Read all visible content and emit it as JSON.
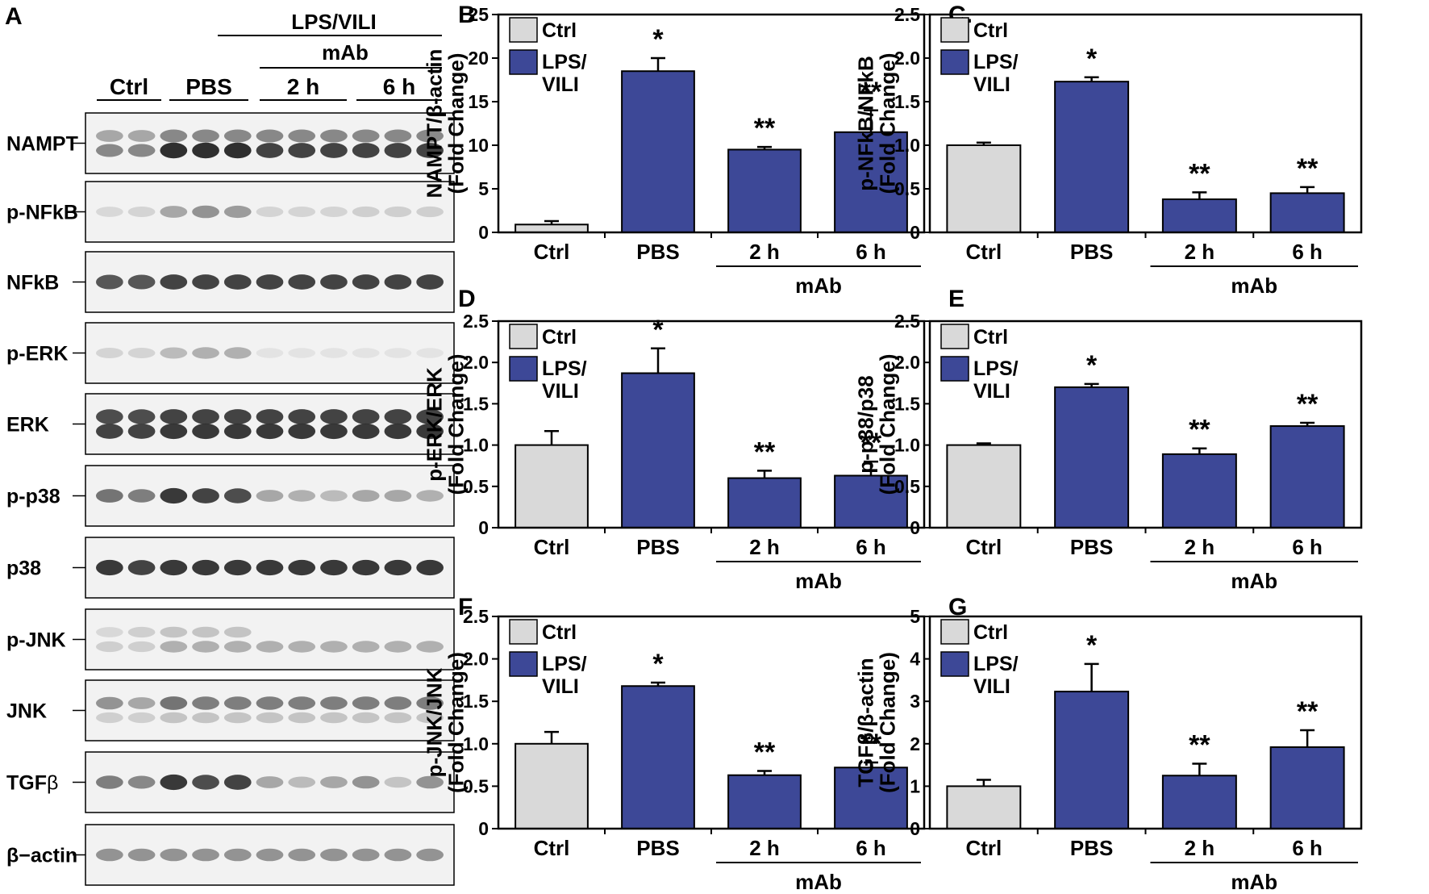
{
  "figure": {
    "panel_a": {
      "letter": "A",
      "group_header": "LPS/VILI",
      "mab_header": "mAb",
      "lane_groups": [
        "Ctrl",
        "PBS",
        "2 h",
        "6 h"
      ],
      "blots": [
        {
          "label": "NAMPT",
          "label_sub": ""
        },
        {
          "label": "p-NFkB",
          "label_sub": ""
        },
        {
          "label": "NFkB",
          "label_sub": ""
        },
        {
          "label": "p-ERK",
          "label_sub": ""
        },
        {
          "label": "ERK",
          "label_sub": ""
        },
        {
          "label": "p-p38",
          "label_sub": ""
        },
        {
          "label": "p38",
          "label_sub": ""
        },
        {
          "label": "p-JNK",
          "label_sub": ""
        },
        {
          "label": "JNK",
          "label_sub": ""
        },
        {
          "label": "TGF",
          "label_sub": "β"
        },
        {
          "label": "β−actin",
          "label_sub": ""
        }
      ],
      "band_intensity": [
        [
          [
            0.35,
            0.35,
            0.5,
            0.5,
            0.5,
            0.5,
            0.5,
            0.5,
            0.5,
            0.5,
            0.5
          ],
          [
            0.5,
            0.5,
            0.95,
            0.95,
            0.95,
            0.85,
            0.85,
            0.85,
            0.85,
            0.85,
            0.85
          ]
        ],
        [
          [
            0.1,
            0.12,
            0.35,
            0.45,
            0.4,
            0.12,
            0.12,
            0.12,
            0.15,
            0.15,
            0.15
          ]
        ],
        [
          [
            0.75,
            0.75,
            0.85,
            0.85,
            0.85,
            0.85,
            0.85,
            0.85,
            0.85,
            0.85,
            0.85
          ]
        ],
        [
          [
            0.12,
            0.12,
            0.25,
            0.3,
            0.3,
            0.05,
            0.05,
            0.05,
            0.05,
            0.05,
            0.05
          ]
        ],
        [
          [
            0.8,
            0.8,
            0.85,
            0.85,
            0.85,
            0.85,
            0.85,
            0.85,
            0.85,
            0.85,
            0.85
          ],
          [
            0.85,
            0.85,
            0.9,
            0.9,
            0.9,
            0.9,
            0.9,
            0.9,
            0.9,
            0.9,
            0.9
          ]
        ],
        [
          [
            0.6,
            0.55,
            0.9,
            0.85,
            0.8,
            0.35,
            0.3,
            0.25,
            0.35,
            0.35,
            0.3
          ]
        ],
        [
          [
            0.9,
            0.85,
            0.9,
            0.9,
            0.9,
            0.9,
            0.9,
            0.9,
            0.9,
            0.9,
            0.9
          ]
        ],
        [
          [
            0.1,
            0.15,
            0.2,
            0.2,
            0.2,
            0.0,
            0.0,
            0.0,
            0.0,
            0.0,
            0.0
          ],
          [
            0.15,
            0.15,
            0.3,
            0.3,
            0.3,
            0.3,
            0.3,
            0.3,
            0.3,
            0.3,
            0.3
          ]
        ],
        [
          [
            0.45,
            0.35,
            0.6,
            0.55,
            0.55,
            0.55,
            0.55,
            0.55,
            0.55,
            0.55,
            0.55
          ],
          [
            0.15,
            0.15,
            0.2,
            0.2,
            0.2,
            0.2,
            0.2,
            0.2,
            0.2,
            0.2,
            0.2
          ]
        ],
        [
          [
            0.55,
            0.5,
            0.9,
            0.8,
            0.85,
            0.35,
            0.25,
            0.35,
            0.45,
            0.2,
            0.45
          ]
        ],
        [
          [
            0.45,
            0.45,
            0.45,
            0.45,
            0.45,
            0.45,
            0.45,
            0.45,
            0.45,
            0.45,
            0.45
          ]
        ]
      ]
    }
  },
  "colors": {
    "ctrl_fill": "#d9d9d9",
    "lps_vili_fill": "#3d4897",
    "axis": "#000000",
    "blot_background": "#f2f2f2"
  },
  "chart_data": [
    {
      "panel": "B",
      "type": "bar",
      "ylabel": "NAMPT/β-actin (Fold Change)",
      "categories": [
        "Ctrl",
        "PBS",
        "2 h",
        "6 h"
      ],
      "group_label": "mAb",
      "ylim": [
        0,
        25
      ],
      "yticks": [
        0,
        5,
        10,
        15,
        20,
        25
      ],
      "tick_labels": [
        "0",
        "5",
        "10",
        "15",
        "20",
        "25"
      ],
      "values": [
        0.9,
        18.5,
        9.5,
        11.5
      ],
      "errors": [
        0.4,
        1.5,
        0.3,
        2.5
      ],
      "bar_series": [
        "Ctrl",
        "LPS/VILI",
        "LPS/VILI",
        "LPS/VILI"
      ],
      "significance": [
        "",
        "*",
        "**",
        "**"
      ],
      "legend": [
        "Ctrl",
        "LPS/",
        "VILI"
      ]
    },
    {
      "panel": "C.",
      "type": "bar",
      "ylabel": "p-NFkB/NFkB (Fold Change)",
      "categories": [
        "Ctrl",
        "PBS",
        "2 h",
        "6 h"
      ],
      "group_label": "mAb",
      "ylim": [
        0,
        2.5
      ],
      "yticks": [
        0,
        0.5,
        1.0,
        1.5,
        2.0,
        2.5
      ],
      "tick_labels": [
        "0",
        "0.5",
        "1.0",
        "1.5",
        "2.0",
        "2.5"
      ],
      "values": [
        1.0,
        1.73,
        0.38,
        0.45
      ],
      "errors": [
        0.03,
        0.05,
        0.08,
        0.07
      ],
      "bar_series": [
        "Ctrl",
        "LPS/VILI",
        "LPS/VILI",
        "LPS/VILI"
      ],
      "significance": [
        "",
        "*",
        "**",
        "**"
      ],
      "legend": [
        "Ctrl",
        "LPS/",
        "VILI"
      ]
    },
    {
      "panel": "D",
      "type": "bar",
      "ylabel": "p-ERK/ERK (Fold Change)",
      "categories": [
        "Ctrl",
        "PBS",
        "2 h",
        "6 h"
      ],
      "group_label": "mAb",
      "ylim": [
        0,
        2.5
      ],
      "yticks": [
        0,
        0.5,
        1.0,
        1.5,
        2.0,
        2.5
      ],
      "tick_labels": [
        "0",
        "0.5",
        "1.0",
        "1.5",
        "2.0",
        "2.5"
      ],
      "values": [
        1.0,
        1.87,
        0.6,
        0.63
      ],
      "errors": [
        0.17,
        0.3,
        0.09,
        0.17
      ],
      "bar_series": [
        "Ctrl",
        "LPS/VILI",
        "LPS/VILI",
        "LPS/VILI"
      ],
      "significance": [
        "",
        "*",
        "**",
        "**"
      ],
      "legend": [
        "Ctrl",
        "LPS/",
        "VILI"
      ]
    },
    {
      "panel": "E",
      "type": "bar",
      "ylabel": "p-p38/p38 (Fold Change)",
      "categories": [
        "Ctrl",
        "PBS",
        "2 h",
        "6 h"
      ],
      "group_label": "mAb",
      "ylim": [
        0,
        2.5
      ],
      "yticks": [
        0,
        0.5,
        1.0,
        1.5,
        2.0,
        2.5
      ],
      "tick_labels": [
        "0",
        "0.5",
        "1.0",
        "1.5",
        "2.0",
        "2.5"
      ],
      "values": [
        1.0,
        1.7,
        0.89,
        1.23
      ],
      "errors": [
        0.02,
        0.04,
        0.07,
        0.04
      ],
      "bar_series": [
        "Ctrl",
        "LPS/VILI",
        "LPS/VILI",
        "LPS/VILI"
      ],
      "significance": [
        "",
        "*",
        "**",
        "**"
      ],
      "legend": [
        "Ctrl",
        "LPS/",
        "VILI"
      ]
    },
    {
      "panel": "F",
      "type": "bar",
      "ylabel": "p-JNK/JNK (Fold Change)",
      "categories": [
        "Ctrl",
        "PBS",
        "2 h",
        "6 h"
      ],
      "group_label": "mAb",
      "ylim": [
        0,
        2.5
      ],
      "yticks": [
        0,
        0.5,
        1.0,
        1.5,
        2.0,
        2.5
      ],
      "tick_labels": [
        "0",
        "0.5",
        "1.0",
        "1.5",
        "2.0",
        "2.5"
      ],
      "values": [
        1.0,
        1.68,
        0.63,
        0.72
      ],
      "errors": [
        0.14,
        0.04,
        0.05,
        0.06
      ],
      "bar_series": [
        "Ctrl",
        "LPS/VILI",
        "LPS/VILI",
        "LPS/VILI"
      ],
      "significance": [
        "",
        "*",
        "**",
        "**"
      ],
      "legend": [
        "Ctrl",
        "LPS/",
        "VILI"
      ]
    },
    {
      "panel": "G",
      "type": "bar",
      "ylabel": "TGFβ/β-actin (Fold Change)",
      "categories": [
        "Ctrl",
        "PBS",
        "2 h",
        "6 h"
      ],
      "group_label": "mAb",
      "ylim": [
        0,
        5
      ],
      "yticks": [
        0,
        1,
        2,
        3,
        4,
        5
      ],
      "tick_labels": [
        "0",
        "1",
        "2",
        "3",
        "4",
        "5"
      ],
      "values": [
        1.0,
        3.23,
        1.25,
        1.92
      ],
      "errors": [
        0.15,
        0.65,
        0.28,
        0.4
      ],
      "bar_series": [
        "Ctrl",
        "LPS/VILI",
        "LPS/VILI",
        "LPS/VILI"
      ],
      "significance": [
        "",
        "*",
        "**",
        "**"
      ],
      "legend": [
        "Ctrl",
        "LPS/",
        "VILI"
      ]
    }
  ]
}
